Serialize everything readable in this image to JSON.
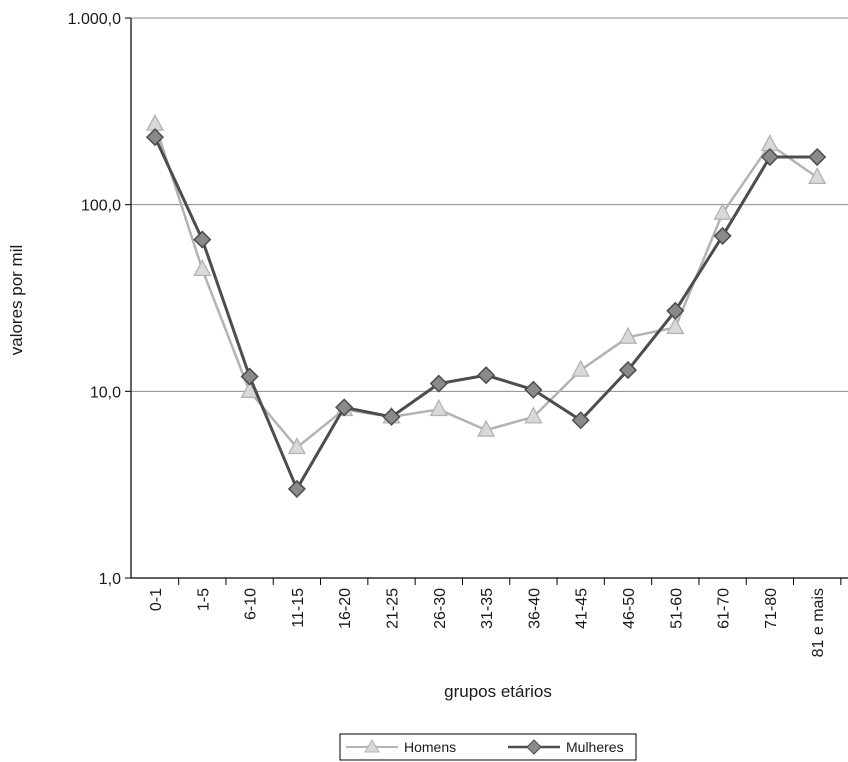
{
  "chart_data": {
    "type": "line",
    "title": "",
    "xlabel": "grupos etários",
    "ylabel": "valores por mil",
    "y_scale": "log",
    "ylim": [
      1,
      1000
    ],
    "y_ticks": [
      "1,0",
      "10,0",
      "100,0",
      "1.000,0"
    ],
    "grid": "horizontal major lines only",
    "legend_position": "bottom-center",
    "categories": [
      "0-1",
      "1-5",
      "6-10",
      "11-15",
      "16-20",
      "21-25",
      "26-30",
      "31-35",
      "36-40",
      "41-45",
      "46-50",
      "51-60",
      "61-70",
      "71-80",
      "81 e mais"
    ],
    "series": [
      {
        "name": "Homens",
        "color": "#b3b3b3",
        "marker": "triangle",
        "values": [
          270,
          45,
          10,
          5,
          8,
          7.3,
          8,
          6.2,
          7.3,
          13,
          19.5,
          22,
          90,
          210,
          140
        ]
      },
      {
        "name": "Mulheres",
        "color": "#4d4d4d",
        "marker": "diamond",
        "values": [
          230,
          65,
          12,
          3,
          8.2,
          7.3,
          11,
          12.2,
          10.2,
          7,
          13,
          27,
          68,
          180,
          180
        ]
      }
    ]
  }
}
